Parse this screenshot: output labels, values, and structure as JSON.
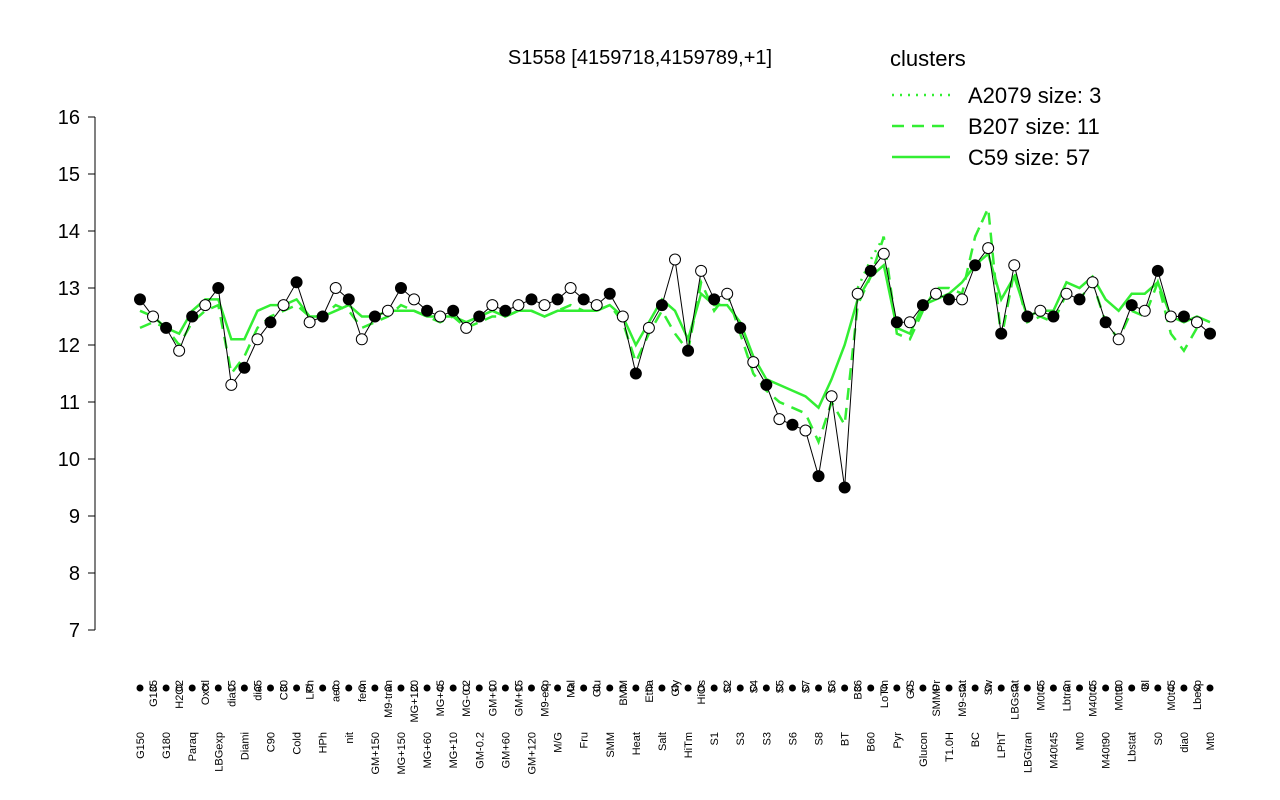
{
  "chart_data": {
    "type": "line",
    "title": "S1558 [4159718,4159789,+1]",
    "legend_title": "clusters",
    "legend_color": "#33ee33",
    "ylim": [
      7,
      16
    ],
    "yticks": [
      7,
      8,
      9,
      10,
      11,
      12,
      13,
      14,
      15,
      16
    ],
    "categories": [
      "G150",
      "G135",
      "G180",
      "H2O2",
      "Paraq",
      "Oxctl",
      "LBGexp",
      "dia15",
      "Diami",
      "dia5",
      "C90",
      "C30",
      "Cold",
      "LPh",
      "HPh",
      "aero",
      "nit",
      "ferm",
      "GM+150",
      "M9-tran",
      "MG+150",
      "MG+120",
      "MG+60",
      "MG+45",
      "MG+10",
      "MG-0.2",
      "GM-0.2",
      "GM+10",
      "GM+60",
      "GM+15",
      "GM+120",
      "M9-exp",
      "M/G",
      "Mal",
      "Fru",
      "Glu",
      "SMM",
      "BMM",
      "Heat",
      "Etha",
      "Salt",
      "Gly",
      "HiTm",
      "HiOs",
      "S1",
      "S2",
      "S3",
      "S4",
      "S3",
      "S5",
      "S6",
      "S7",
      "S8",
      "S6",
      "BT",
      "B36",
      "B60",
      "LoTm",
      "Pyr",
      "G/S",
      "Glucon",
      "SMMPr",
      "T1.0H",
      "M9-stat",
      "BC",
      "Sw",
      "LPhT",
      "LBGstat",
      "LBGtran",
      "M0t45",
      "M40t45",
      "Lbtran",
      "Mt0",
      "M40t45",
      "M40t90",
      "M0t90",
      "Lbstat",
      "Bl",
      "S0",
      "M0t45",
      "dia0",
      "Lbexp",
      "Mt0"
    ],
    "points": {
      "color": "#000000",
      "values": [
        12.8,
        12.5,
        12.3,
        11.9,
        12.5,
        12.7,
        13.0,
        11.3,
        11.6,
        12.1,
        12.4,
        12.7,
        13.1,
        12.4,
        12.5,
        13.0,
        12.8,
        12.1,
        12.5,
        12.6,
        13.0,
        12.8,
        12.6,
        12.5,
        12.6,
        12.3,
        12.5,
        12.7,
        12.6,
        12.7,
        12.8,
        12.7,
        12.8,
        13.0,
        12.8,
        12.7,
        12.9,
        12.5,
        11.5,
        12.3,
        12.7,
        13.5,
        11.9,
        13.3,
        12.8,
        12.9,
        12.3,
        11.7,
        11.3,
        10.7,
        10.6,
        10.5,
        9.7,
        11.1,
        9.5,
        12.9,
        13.3,
        13.6,
        12.4,
        12.4,
        12.7,
        12.9,
        12.8,
        12.8,
        13.4,
        13.7,
        12.2,
        13.4,
        12.5,
        12.6,
        12.5,
        12.9,
        12.8,
        13.1,
        12.4,
        12.1,
        12.7,
        12.6,
        13.3,
        12.5,
        12.5,
        12.4,
        12.2
      ]
    },
    "series": [
      {
        "name": "A2079 size: 3",
        "style": "dotted",
        "color": "#33ee33",
        "values": [
          null,
          null,
          null,
          null,
          null,
          null,
          null,
          null,
          null,
          null,
          null,
          null,
          null,
          null,
          null,
          null,
          null,
          null,
          null,
          null,
          null,
          null,
          null,
          null,
          null,
          null,
          null,
          null,
          null,
          null,
          null,
          null,
          null,
          null,
          null,
          null,
          null,
          null,
          null,
          null,
          null,
          null,
          null,
          null,
          null,
          null,
          null,
          null,
          null,
          null,
          null,
          null,
          null,
          null,
          null,
          13.0,
          13.5,
          13.9,
          null,
          null,
          null,
          null,
          null,
          null,
          13.9,
          14.4,
          null,
          null,
          null,
          null,
          null,
          null,
          null,
          null,
          null,
          null,
          null,
          null,
          null,
          null,
          null,
          null,
          null
        ]
      },
      {
        "name": "B207 size: 11",
        "style": "dashed",
        "color": "#33ee33",
        "values": [
          12.3,
          12.4,
          12.3,
          12.0,
          12.4,
          12.6,
          12.7,
          11.5,
          11.8,
          12.3,
          12.5,
          12.6,
          12.7,
          12.5,
          12.5,
          12.7,
          12.6,
          12.3,
          12.4,
          12.5,
          12.7,
          12.6,
          12.5,
          12.4,
          12.5,
          12.3,
          12.4,
          12.5,
          12.5,
          12.6,
          12.6,
          12.5,
          12.6,
          12.7,
          12.6,
          12.6,
          12.7,
          12.4,
          11.7,
          12.2,
          12.6,
          12.2,
          11.9,
          13.1,
          12.6,
          12.9,
          12.2,
          11.5,
          11.2,
          11.0,
          10.9,
          10.8,
          10.3,
          11.0,
          10.6,
          12.7,
          13.2,
          13.9,
          12.2,
          12.1,
          12.6,
          13.0,
          13.0,
          12.9,
          13.9,
          14.4,
          12.1,
          13.3,
          12.4,
          12.5,
          12.4,
          12.9,
          12.8,
          13.1,
          12.4,
          12.1,
          12.6,
          12.5,
          13.1,
          12.2,
          11.9,
          12.3,
          12.2
        ]
      },
      {
        "name": "C59 size: 57",
        "style": "solid",
        "color": "#33ee33",
        "values": [
          12.6,
          12.5,
          12.3,
          12.2,
          12.6,
          12.8,
          12.8,
          12.1,
          12.1,
          12.6,
          12.7,
          12.7,
          12.8,
          12.5,
          12.5,
          12.6,
          12.7,
          12.5,
          12.5,
          12.6,
          12.6,
          12.6,
          12.5,
          12.5,
          12.5,
          12.4,
          12.5,
          12.6,
          12.5,
          12.6,
          12.6,
          12.5,
          12.6,
          12.6,
          12.6,
          12.6,
          12.7,
          12.5,
          12.0,
          12.4,
          12.8,
          12.6,
          12.1,
          12.9,
          12.7,
          12.7,
          12.4,
          11.8,
          11.4,
          11.3,
          11.2,
          11.1,
          10.9,
          11.4,
          12.0,
          12.8,
          13.2,
          13.4,
          12.3,
          12.2,
          12.7,
          12.8,
          12.9,
          13.1,
          13.4,
          13.6,
          12.8,
          13.2,
          12.5,
          12.6,
          12.6,
          13.1,
          13.0,
          13.2,
          12.8,
          12.6,
          12.9,
          12.9,
          13.1,
          12.5,
          12.4,
          12.5,
          12.4
        ]
      }
    ]
  }
}
